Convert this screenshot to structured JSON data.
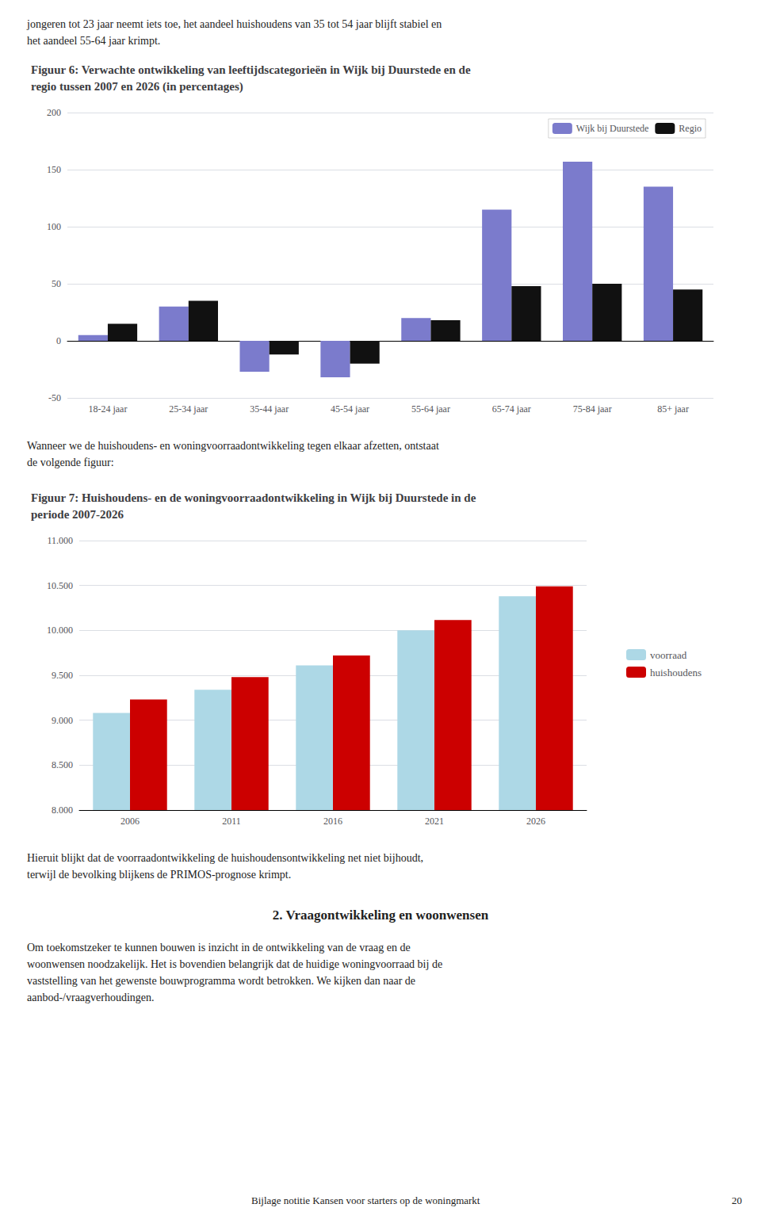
{
  "intro_text": "jongeren tot 23 jaar neemt iets toe, het aandeel huishoudens van 35 tot 54 jaar blijft stabiel en\nhet aandeel 55-64 jaar krimpt.",
  "between_text": "Wanneer we de huishoudens- en woningvoorraadontwikkeling tegen elkaar afzetten, ontstaat\nde volgende figuur:",
  "after_text": "Hieruit blijkt dat de voorraadontwikkeling de huishoudensontwikkeling net niet bijhoudt,\nterwijl de bevolking blijkens de PRIMOS-prognose krimpt.",
  "section_title": "2. Vraagontwikkeling en woonwensen",
  "section_text": "Om toekomstzeker te kunnen bouwen is inzicht in de ontwikkeling van de vraag en de\nwoonwensen noodzakelijk. Het is bovendien belangrijk dat de huidige woningvoorraad bij de\nvaststelling van het gewenste bouwprogramma wordt betrokken. We kijken dan naar de\naanbod-/vraagverhoudingen.",
  "footer_text": "Bijlage notitie Kansen voor starters op de woningmarkt",
  "footer_page": "20",
  "chart_data": [
    {
      "type": "bar",
      "title": "Figuur 6: Verwachte ontwikkeling van leeftijdscategorieën in Wijk bij Duurstede en de\nregio tussen 2007 en 2026 (in percentages)",
      "categories": [
        "18-24 jaar",
        "25-34 jaar",
        "35-44 jaar",
        "45-54 jaar",
        "55-64 jaar",
        "65-74 jaar",
        "75-84 jaar",
        "85+ jaar"
      ],
      "series": [
        {
          "name": "Wijk bij Duurstede",
          "color": "#7b7bcc",
          "values": [
            5,
            30,
            -27,
            -32,
            20,
            115,
            157,
            135
          ]
        },
        {
          "name": "Regio",
          "color": "#111111",
          "values": [
            15,
            35,
            -12,
            -20,
            18,
            48,
            50,
            45
          ]
        }
      ],
      "ylim": [
        -50,
        200
      ],
      "yticks": [
        -50,
        0,
        50,
        100,
        150,
        200
      ],
      "grid": true,
      "legend": "upper right"
    },
    {
      "type": "bar",
      "title": "Figuur 7: Huishoudens- en de woningvoorraadontwikkeling in Wijk bij Duurstede in de\nperiode 2007-2026",
      "categories": [
        "2006",
        "2011",
        "2016",
        "2021",
        "2026"
      ],
      "series": [
        {
          "name": "voorraad",
          "color": "#add8e6",
          "values": [
            9080,
            9340,
            9610,
            10000,
            10380
          ]
        },
        {
          "name": "huishoudens",
          "color": "#cc0000",
          "values": [
            9230,
            9480,
            9720,
            10115,
            10490
          ]
        }
      ],
      "ylim": [
        8000,
        11000
      ],
      "yticks": [
        {
          "value": 8000,
          "label": "8.000"
        },
        {
          "value": 8500,
          "label": "8.500"
        },
        {
          "value": 9000,
          "label": "9.000"
        },
        {
          "value": 9500,
          "label": "9.500"
        },
        {
          "value": 10000,
          "label": "10.000"
        },
        {
          "value": 10500,
          "label": "10.500"
        },
        {
          "value": 11000,
          "label": "11.000"
        }
      ],
      "grid": true,
      "legend": "right"
    }
  ]
}
